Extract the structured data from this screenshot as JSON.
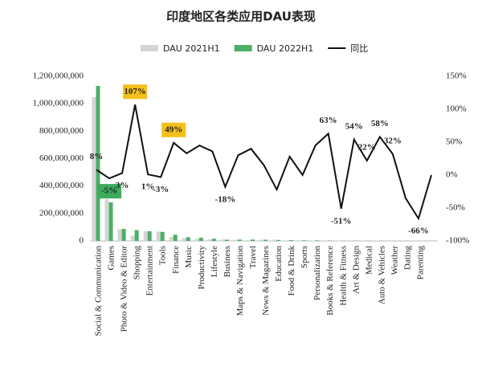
{
  "chart_data": {
    "type": "bar_line",
    "title": "印度地区各类应用DAU表现",
    "categories": [
      "Social & Communication",
      "Games",
      "Photo & Video & Editor",
      "Shopping",
      "Entertainment",
      "Tools",
      "Finance",
      "Music",
      "Productivity",
      "Lifestyle",
      "Business",
      "Maps & Navigation",
      "Travel",
      "News & Magazines",
      "Education",
      "Food & Drink",
      "Sports",
      "Personalization",
      "Books & Reference",
      "Health & Fitness",
      "Art & Design",
      "Medical",
      "Auto & Vehicles",
      "Weather",
      "Dating",
      "Parenting",
      null
    ],
    "series": [
      {
        "name": "DAU 2021H1",
        "color": "#d4d4d4",
        "type": "bar",
        "values": [
          1048000000,
          304000000,
          85000000,
          38000000,
          70000000,
          68000000,
          30000000,
          20000000,
          16000000,
          12000000,
          11000000,
          8000000,
          7000000,
          8000000,
          9000000,
          5000000,
          4000000,
          3000000,
          2000000,
          3000000,
          1000000,
          1000000,
          800000,
          800000,
          600000,
          500000,
          300000
        ]
      },
      {
        "name": "DAU 2022H1",
        "color": "#4caf66",
        "type": "bar",
        "values": [
          1130000000,
          281000000,
          88000000,
          79000000,
          71000000,
          66000000,
          45000000,
          27000000,
          23000000,
          16000000,
          9000000,
          10000000,
          10000000,
          9000000,
          7000000,
          6000000,
          4000000,
          4000000,
          3000000,
          1500000,
          1500000,
          1200000,
          1300000,
          1000000,
          400000,
          200000,
          300000
        ]
      },
      {
        "name": "同比",
        "color": "#111111",
        "type": "line",
        "axis": "y2",
        "values": [
          8,
          -5,
          3,
          107,
          1,
          -3,
          49,
          33,
          45,
          36,
          -18,
          30,
          40,
          15,
          -22,
          28,
          0,
          45,
          63,
          -51,
          54,
          22,
          58,
          32,
          -35,
          -66,
          0
        ],
        "value_labels": [
          "8%",
          "-5%",
          "3%",
          "107%",
          "1%",
          "-3%",
          "49%",
          null,
          null,
          null,
          "-18%",
          null,
          null,
          null,
          null,
          null,
          null,
          null,
          "63%",
          "-51%",
          "54%",
          "22%",
          "58%",
          "32%",
          null,
          "-66%",
          null
        ],
        "label_box_colors": [
          null,
          "#3daa5c",
          null,
          "#f5c01a",
          null,
          null,
          "#f5c01a",
          null,
          null,
          null,
          null,
          null,
          null,
          null,
          null,
          null,
          null,
          null,
          null,
          null,
          null,
          null,
          null,
          null,
          null,
          null,
          null
        ]
      }
    ],
    "ylim": [
      0,
      1200000000
    ],
    "yticks": [
      0,
      {
        "value": 200000000,
        "label": "200,000,000"
      },
      {
        "value": 400000000,
        "label": "400,000,000"
      },
      {
        "value": 600000000,
        "label": "600,000,000"
      },
      {
        "value": 800000000,
        "label": "800,000,000"
      },
      {
        "value": 1000000000,
        "label": "1,000,000,000"
      },
      {
        "value": 1200000000,
        "label": "1,200,000,000"
      }
    ],
    "y2lim": [
      -100,
      150
    ],
    "y2ticks": [
      {
        "value": -100,
        "label": "-100%"
      },
      {
        "value": -50,
        "label": "-50%"
      },
      {
        "value": 0,
        "label": "0%"
      },
      {
        "value": 50,
        "label": "50%"
      },
      {
        "value": 100,
        "label": "100%"
      },
      {
        "value": 150,
        "label": "150%"
      }
    ],
    "legend": "top"
  }
}
